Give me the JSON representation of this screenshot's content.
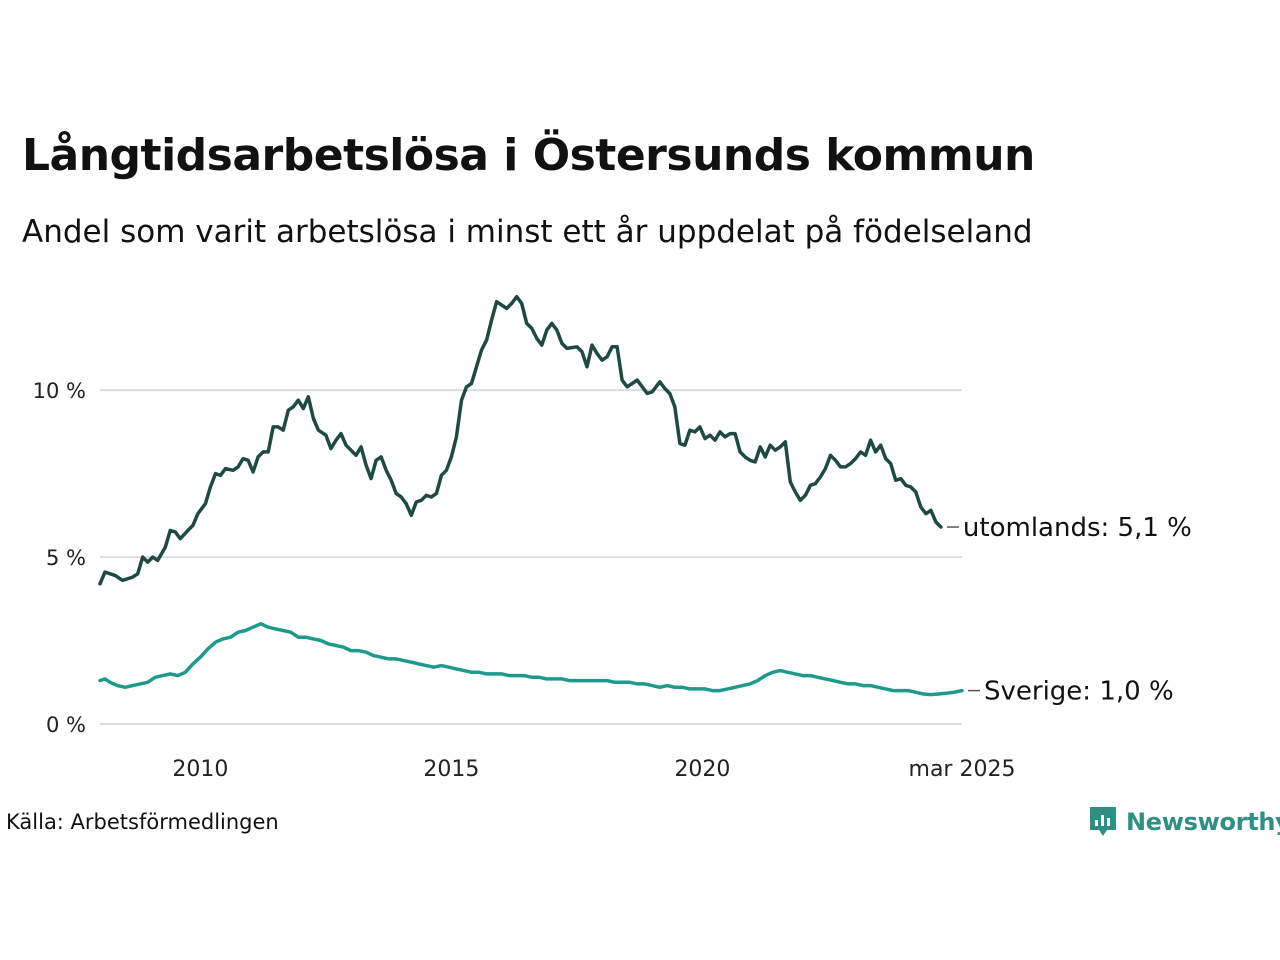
{
  "header": {
    "title": "Långtidsarbetslösa i Östersunds kommun",
    "subtitle": "Andel som varit arbetslösa i minst ett år uppdelat på födelseland"
  },
  "footer": {
    "source": "Källa: Arbetsförmedlingen",
    "brand": "Newsworthy",
    "brand_icon": "newsworthy-logo-icon"
  },
  "colors": {
    "utomlands": "#1f4a40",
    "sverige": "#1e9a8c",
    "grid": "#dcdcdc",
    "brand": "#2f8f83"
  },
  "chart_data": {
    "type": "line",
    "title": "Långtidsarbetslösa i Östersunds kommun",
    "subtitle": "Andel som varit arbetslösa i minst ett år uppdelat på födelseland",
    "xlim": [
      2008.0,
      2025.17
    ],
    "ylim": [
      0,
      13
    ],
    "grid": true,
    "y_ticks": [
      {
        "value": 0,
        "label": "0 %"
      },
      {
        "value": 5,
        "label": "5 %"
      },
      {
        "value": 10,
        "label": "10 %"
      }
    ],
    "x_ticks": [
      {
        "value": 2010,
        "label": "2010"
      },
      {
        "value": 2015,
        "label": "2015"
      },
      {
        "value": 2020,
        "label": "2020"
      },
      {
        "value": 2025.17,
        "label": "mar 2025"
      }
    ],
    "series": [
      {
        "key": "utomlands",
        "name": "utomlands",
        "end_label": "utomlands: 5,1 %",
        "points": [
          [
            2008.0,
            4.2
          ],
          [
            2008.1,
            4.55
          ],
          [
            2008.3,
            4.45
          ],
          [
            2008.45,
            4.3
          ],
          [
            2008.65,
            4.4
          ],
          [
            2008.75,
            4.5
          ],
          [
            2008.85,
            5.0
          ],
          [
            2008.95,
            4.85
          ],
          [
            2009.05,
            5.0
          ],
          [
            2009.15,
            4.9
          ],
          [
            2009.3,
            5.3
          ],
          [
            2009.4,
            5.8
          ],
          [
            2009.5,
            5.75
          ],
          [
            2009.6,
            5.55
          ],
          [
            2009.75,
            5.8
          ],
          [
            2009.85,
            5.95
          ],
          [
            2009.95,
            6.3
          ],
          [
            2010.1,
            6.6
          ],
          [
            2010.2,
            7.1
          ],
          [
            2010.3,
            7.5
          ],
          [
            2010.4,
            7.45
          ],
          [
            2010.5,
            7.65
          ],
          [
            2010.65,
            7.6
          ],
          [
            2010.75,
            7.7
          ],
          [
            2010.85,
            7.95
          ],
          [
            2010.95,
            7.9
          ],
          [
            2011.05,
            7.55
          ],
          [
            2011.15,
            8.0
          ],
          [
            2011.25,
            8.15
          ],
          [
            2011.35,
            8.15
          ],
          [
            2011.45,
            8.9
          ],
          [
            2011.55,
            8.9
          ],
          [
            2011.65,
            8.8
          ],
          [
            2011.75,
            9.4
          ],
          [
            2011.85,
            9.5
          ],
          [
            2011.95,
            9.7
          ],
          [
            2012.05,
            9.45
          ],
          [
            2012.15,
            9.8
          ],
          [
            2012.25,
            9.15
          ],
          [
            2012.35,
            8.8
          ],
          [
            2012.5,
            8.65
          ],
          [
            2012.6,
            8.25
          ],
          [
            2012.7,
            8.5
          ],
          [
            2012.8,
            8.7
          ],
          [
            2012.9,
            8.35
          ],
          [
            2013.0,
            8.2
          ],
          [
            2013.1,
            8.05
          ],
          [
            2013.2,
            8.3
          ],
          [
            2013.3,
            7.75
          ],
          [
            2013.4,
            7.35
          ],
          [
            2013.5,
            7.9
          ],
          [
            2013.6,
            8.0
          ],
          [
            2013.7,
            7.6
          ],
          [
            2013.8,
            7.3
          ],
          [
            2013.9,
            6.9
          ],
          [
            2014.0,
            6.8
          ],
          [
            2014.1,
            6.6
          ],
          [
            2014.2,
            6.25
          ],
          [
            2014.3,
            6.65
          ],
          [
            2014.4,
            6.7
          ],
          [
            2014.5,
            6.85
          ],
          [
            2014.6,
            6.8
          ],
          [
            2014.7,
            6.9
          ],
          [
            2014.8,
            7.45
          ],
          [
            2014.9,
            7.6
          ],
          [
            2015.0,
            8.0
          ],
          [
            2015.1,
            8.6
          ],
          [
            2015.2,
            9.7
          ],
          [
            2015.3,
            10.1
          ],
          [
            2015.4,
            10.2
          ],
          [
            2015.5,
            10.7
          ],
          [
            2015.6,
            11.2
          ],
          [
            2015.7,
            11.5
          ],
          [
            2015.8,
            12.1
          ],
          [
            2015.9,
            12.65
          ],
          [
            2016.0,
            12.55
          ],
          [
            2016.1,
            12.45
          ],
          [
            2016.2,
            12.6
          ],
          [
            2016.3,
            12.8
          ],
          [
            2016.4,
            12.6
          ],
          [
            2016.5,
            12.0
          ],
          [
            2016.6,
            11.85
          ],
          [
            2016.7,
            11.55
          ],
          [
            2016.8,
            11.35
          ],
          [
            2016.9,
            11.8
          ],
          [
            2017.0,
            12.0
          ],
          [
            2017.1,
            11.8
          ],
          [
            2017.2,
            11.4
          ],
          [
            2017.3,
            11.25
          ],
          [
            2017.5,
            11.3
          ],
          [
            2017.6,
            11.15
          ],
          [
            2017.7,
            10.7
          ],
          [
            2017.8,
            11.35
          ],
          [
            2017.9,
            11.1
          ],
          [
            2018.0,
            10.9
          ],
          [
            2018.1,
            11.0
          ],
          [
            2018.2,
            11.3
          ],
          [
            2018.3,
            11.3
          ],
          [
            2018.4,
            10.3
          ],
          [
            2018.5,
            10.1
          ],
          [
            2018.6,
            10.2
          ],
          [
            2018.7,
            10.3
          ],
          [
            2018.8,
            10.1
          ],
          [
            2018.9,
            9.9
          ],
          [
            2019.0,
            9.95
          ],
          [
            2019.15,
            10.25
          ],
          [
            2019.25,
            10.05
          ],
          [
            2019.35,
            9.9
          ],
          [
            2019.45,
            9.5
          ],
          [
            2019.55,
            8.4
          ],
          [
            2019.65,
            8.35
          ],
          [
            2019.75,
            8.8
          ],
          [
            2019.85,
            8.75
          ],
          [
            2019.95,
            8.9
          ],
          [
            2020.05,
            8.55
          ],
          [
            2020.15,
            8.65
          ],
          [
            2020.25,
            8.5
          ],
          [
            2020.35,
            8.75
          ],
          [
            2020.45,
            8.6
          ],
          [
            2020.55,
            8.7
          ],
          [
            2020.65,
            8.7
          ],
          [
            2020.75,
            8.15
          ],
          [
            2020.85,
            8.0
          ],
          [
            2020.95,
            7.9
          ],
          [
            2021.05,
            7.85
          ],
          [
            2021.15,
            8.3
          ],
          [
            2021.25,
            8.0
          ],
          [
            2021.35,
            8.35
          ],
          [
            2021.45,
            8.2
          ],
          [
            2021.55,
            8.3
          ],
          [
            2021.65,
            8.45
          ],
          [
            2021.75,
            7.25
          ],
          [
            2021.85,
            6.95
          ],
          [
            2021.95,
            6.7
          ],
          [
            2022.05,
            6.85
          ],
          [
            2022.15,
            7.15
          ],
          [
            2022.25,
            7.2
          ],
          [
            2022.35,
            7.4
          ],
          [
            2022.45,
            7.65
          ],
          [
            2022.55,
            8.05
          ],
          [
            2022.65,
            7.9
          ],
          [
            2022.75,
            7.7
          ],
          [
            2022.85,
            7.7
          ],
          [
            2022.95,
            7.8
          ],
          [
            2023.05,
            7.95
          ],
          [
            2023.15,
            8.15
          ],
          [
            2023.25,
            8.05
          ],
          [
            2023.35,
            8.5
          ],
          [
            2023.45,
            8.15
          ],
          [
            2023.55,
            8.35
          ],
          [
            2023.65,
            7.95
          ],
          [
            2023.75,
            7.8
          ],
          [
            2023.85,
            7.3
          ],
          [
            2023.95,
            7.35
          ],
          [
            2024.05,
            7.15
          ],
          [
            2024.15,
            7.1
          ],
          [
            2024.25,
            6.95
          ],
          [
            2024.35,
            6.5
          ],
          [
            2024.45,
            6.3
          ],
          [
            2024.55,
            6.4
          ],
          [
            2024.65,
            6.05
          ],
          [
            2024.75,
            5.9
          ]
        ]
      },
      {
        "key": "sverige",
        "name": "Sverige",
        "end_label": "Sverige: 1,0 %",
        "points": [
          [
            2008.0,
            1.3
          ],
          [
            2008.1,
            1.35
          ],
          [
            2008.2,
            1.25
          ],
          [
            2008.35,
            1.15
          ],
          [
            2008.5,
            1.1
          ],
          [
            2008.65,
            1.15
          ],
          [
            2008.8,
            1.2
          ],
          [
            2008.95,
            1.25
          ],
          [
            2009.1,
            1.4
          ],
          [
            2009.25,
            1.45
          ],
          [
            2009.4,
            1.5
          ],
          [
            2009.55,
            1.45
          ],
          [
            2009.7,
            1.55
          ],
          [
            2009.85,
            1.8
          ],
          [
            2010.0,
            2.0
          ],
          [
            2010.15,
            2.25
          ],
          [
            2010.3,
            2.45
          ],
          [
            2010.45,
            2.55
          ],
          [
            2010.6,
            2.6
          ],
          [
            2010.75,
            2.75
          ],
          [
            2010.9,
            2.8
          ],
          [
            2011.05,
            2.9
          ],
          [
            2011.2,
            3.0
          ],
          [
            2011.35,
            2.9
          ],
          [
            2011.5,
            2.85
          ],
          [
            2011.65,
            2.8
          ],
          [
            2011.8,
            2.75
          ],
          [
            2011.95,
            2.6
          ],
          [
            2012.1,
            2.6
          ],
          [
            2012.25,
            2.55
          ],
          [
            2012.4,
            2.5
          ],
          [
            2012.55,
            2.4
          ],
          [
            2012.7,
            2.35
          ],
          [
            2012.85,
            2.3
          ],
          [
            2013.0,
            2.2
          ],
          [
            2013.15,
            2.2
          ],
          [
            2013.3,
            2.15
          ],
          [
            2013.45,
            2.05
          ],
          [
            2013.6,
            2.0
          ],
          [
            2013.75,
            1.95
          ],
          [
            2013.9,
            1.95
          ],
          [
            2014.05,
            1.9
          ],
          [
            2014.2,
            1.85
          ],
          [
            2014.35,
            1.8
          ],
          [
            2014.5,
            1.75
          ],
          [
            2014.65,
            1.7
          ],
          [
            2014.8,
            1.75
          ],
          [
            2014.95,
            1.7
          ],
          [
            2015.1,
            1.65
          ],
          [
            2015.25,
            1.6
          ],
          [
            2015.4,
            1.55
          ],
          [
            2015.55,
            1.55
          ],
          [
            2015.7,
            1.5
          ],
          [
            2015.85,
            1.5
          ],
          [
            2016.0,
            1.5
          ],
          [
            2016.15,
            1.45
          ],
          [
            2016.3,
            1.45
          ],
          [
            2016.45,
            1.45
          ],
          [
            2016.6,
            1.4
          ],
          [
            2016.75,
            1.4
          ],
          [
            2016.9,
            1.35
          ],
          [
            2017.05,
            1.35
          ],
          [
            2017.2,
            1.35
          ],
          [
            2017.35,
            1.3
          ],
          [
            2017.5,
            1.3
          ],
          [
            2017.65,
            1.3
          ],
          [
            2017.8,
            1.3
          ],
          [
            2017.95,
            1.3
          ],
          [
            2018.1,
            1.3
          ],
          [
            2018.25,
            1.25
          ],
          [
            2018.4,
            1.25
          ],
          [
            2018.55,
            1.25
          ],
          [
            2018.7,
            1.2
          ],
          [
            2018.85,
            1.2
          ],
          [
            2019.0,
            1.15
          ],
          [
            2019.15,
            1.1
          ],
          [
            2019.3,
            1.15
          ],
          [
            2019.45,
            1.1
          ],
          [
            2019.6,
            1.1
          ],
          [
            2019.75,
            1.05
          ],
          [
            2019.9,
            1.05
          ],
          [
            2020.05,
            1.05
          ],
          [
            2020.2,
            1.0
          ],
          [
            2020.35,
            1.0
          ],
          [
            2020.5,
            1.05
          ],
          [
            2020.65,
            1.1
          ],
          [
            2020.8,
            1.15
          ],
          [
            2020.95,
            1.2
          ],
          [
            2021.1,
            1.3
          ],
          [
            2021.25,
            1.45
          ],
          [
            2021.4,
            1.55
          ],
          [
            2021.55,
            1.6
          ],
          [
            2021.7,
            1.55
          ],
          [
            2021.85,
            1.5
          ],
          [
            2022.0,
            1.45
          ],
          [
            2022.15,
            1.45
          ],
          [
            2022.3,
            1.4
          ],
          [
            2022.45,
            1.35
          ],
          [
            2022.6,
            1.3
          ],
          [
            2022.75,
            1.25
          ],
          [
            2022.9,
            1.2
          ],
          [
            2023.05,
            1.2
          ],
          [
            2023.2,
            1.15
          ],
          [
            2023.35,
            1.15
          ],
          [
            2023.5,
            1.1
          ],
          [
            2023.65,
            1.05
          ],
          [
            2023.8,
            1.0
          ],
          [
            2023.95,
            1.0
          ],
          [
            2024.1,
            1.0
          ],
          [
            2024.25,
            0.95
          ],
          [
            2024.4,
            0.9
          ],
          [
            2024.55,
            0.88
          ],
          [
            2024.7,
            0.9
          ],
          [
            2024.85,
            0.92
          ],
          [
            2025.0,
            0.95
          ],
          [
            2025.17,
            1.0
          ]
        ]
      }
    ]
  }
}
